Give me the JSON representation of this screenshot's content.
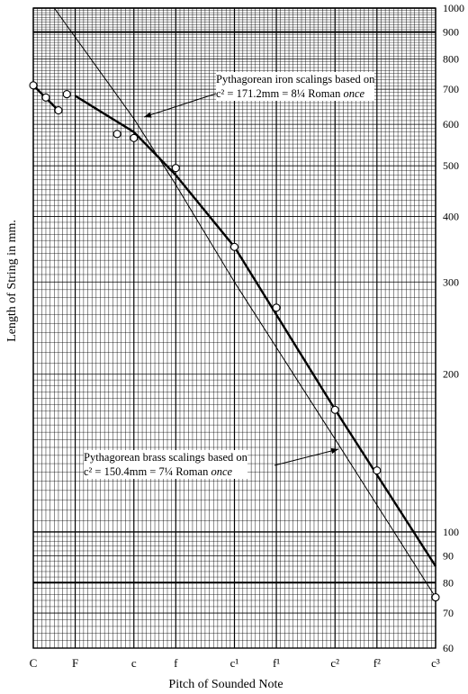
{
  "chart_data": {
    "type": "line",
    "xlabel": "Pitch of Sounded Note",
    "ylabel": "Length of String in mm.",
    "x_ticks": [
      "C",
      "F",
      "c",
      "f",
      "c¹",
      "f¹",
      "c²",
      "f²",
      "c³"
    ],
    "x_tick_semitones": [
      0,
      5,
      12,
      17,
      24,
      29,
      36,
      41,
      48
    ],
    "y_scale": "log",
    "ylim": [
      60,
      1000
    ],
    "y_tick_labels": [
      60,
      70,
      80,
      90,
      100,
      200,
      300,
      400,
      500,
      600,
      700,
      800,
      900,
      1000
    ],
    "grid": true,
    "series": [
      {
        "name": "Pythagorean iron scalings",
        "style": "thick",
        "x": [
          5,
          12,
          17,
          24,
          36,
          48
        ],
        "y": [
          680,
          580,
          480,
          350,
          171.2,
          86
        ]
      },
      {
        "name": "Pythagorean brass scalings",
        "style": "thin",
        "x": [
          2.5,
          12,
          17,
          24,
          36,
          48
        ],
        "y": [
          1000,
          615,
          460,
          300,
          150.4,
          75
        ]
      },
      {
        "name": "observed short segment",
        "style": "thick",
        "x": [
          0,
          3
        ],
        "y": [
          712,
          638
        ]
      },
      {
        "name": "data points",
        "style": "markers",
        "x": [
          0,
          1.5,
          3,
          4,
          10,
          12,
          17,
          24,
          29,
          36,
          41,
          48
        ],
        "y": [
          712,
          675,
          638,
          685,
          575,
          565,
          495,
          350,
          268,
          171,
          131,
          75
        ]
      }
    ]
  },
  "annotations": {
    "iron": {
      "line1": "Pythagorean iron scalings based on",
      "line2": "c² = 171.2mm = 8¼ Roman ",
      "line2_italic": "once"
    },
    "brass": {
      "line1": "Pythagorean brass scalings based on",
      "line2": "c² = 150.4mm = 7¼ Roman ",
      "line2_italic": "once"
    }
  }
}
